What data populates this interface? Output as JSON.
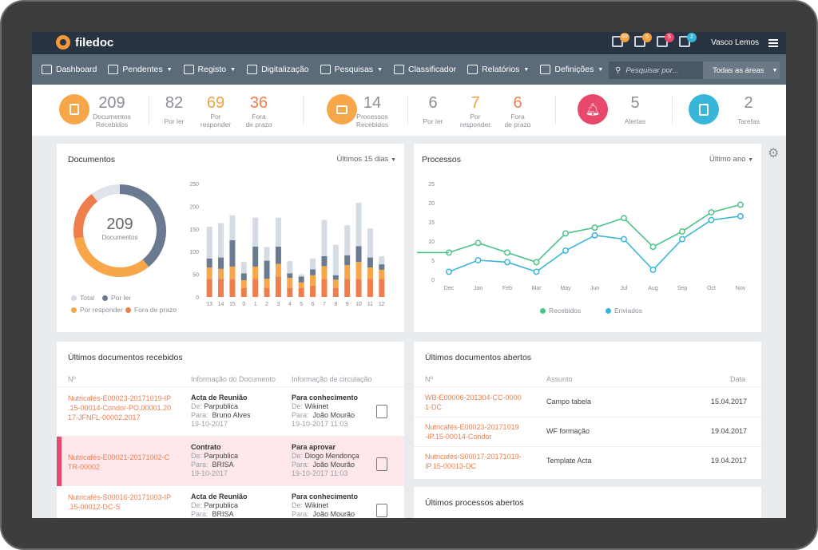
{
  "app": {
    "name": "filedoc",
    "user": "Vasco Lemos"
  },
  "topbar": {
    "badges": [
      {
        "value": "69",
        "color": "#f2a141"
      },
      {
        "value": "5",
        "color": "#f2a141"
      },
      {
        "value": "5",
        "color": "#e8496a"
      },
      {
        "value": "2",
        "color": "#37b6d9"
      }
    ]
  },
  "nav": {
    "items": [
      {
        "label": "Dashboard"
      },
      {
        "label": "Pendentes",
        "caret": true
      },
      {
        "label": "Registo",
        "caret": true
      },
      {
        "label": "Digitalização"
      },
      {
        "label": "Pesquisas",
        "caret": true
      },
      {
        "label": "Classificador"
      },
      {
        "label": "Relatórios",
        "caret": true
      },
      {
        "label": "Definições",
        "caret": true
      }
    ],
    "search_placeholder": "Pesquisar por...",
    "area": "Todas as áreas"
  },
  "stats": {
    "doc": {
      "value": "209",
      "label1": "Documentos",
      "label2": "Recebidos",
      "por_ler": "82",
      "por_ler_label": "Por ler",
      "por_responder": "69",
      "por_responder_l1": "Por",
      "por_responder_l2": "responder",
      "fora": "36",
      "fora_l1": "Fora",
      "fora_l2": "de prazo"
    },
    "proc": {
      "value": "14",
      "label1": "Processos",
      "label2": "Recebidos",
      "por_ler": "6",
      "por_ler_label": "Por ler",
      "por_responder": "7",
      "por_responder_l1": "Por",
      "por_responder_l2": "responder",
      "fora": "6",
      "fora_l1": "Fora",
      "fora_l2": "de prazo"
    },
    "alertas": {
      "value": "5",
      "label": "Alertas"
    },
    "tarefas": {
      "value": "2",
      "label": "Tarefas"
    },
    "colors": {
      "orange": "#f7a74a",
      "red": "#e8496a",
      "blue": "#37b6d9",
      "orange_text": "#f2a141",
      "red_text": "#f07e4d"
    }
  },
  "documentos": {
    "title": "Documentos",
    "range": "Últimos 15 dias",
    "total": "209",
    "total_label": "Documentos",
    "legend": [
      "Total",
      "Por ler",
      "Por responder",
      "Fora de prazo"
    ],
    "donut": {
      "Total": 209,
      "Por ler": 82,
      "Por responder": 69,
      "Fora de prazo": 36
    }
  },
  "processos": {
    "title": "Processos",
    "range": "Último ano",
    "legend": [
      "Recebidos",
      "Enviados"
    ]
  },
  "chart_data": [
    {
      "type": "bar",
      "stacked": true,
      "categories": [
        "13",
        "14",
        "15",
        "0",
        "1",
        "2",
        "3",
        "4",
        "5",
        "6",
        "7",
        "8",
        "9",
        "10",
        "11",
        "12"
      ],
      "ylim": [
        0,
        250
      ],
      "yticks": [
        0,
        50,
        100,
        150,
        200,
        250
      ],
      "series": [
        {
          "name": "Fora de prazo",
          "color": "#f07e4d",
          "values": [
            40,
            40,
            40,
            20,
            40,
            20,
            45,
            20,
            20,
            25,
            40,
            20,
            40,
            40,
            40,
            40
          ]
        },
        {
          "name": "Por responder",
          "color": "#f7a74a",
          "values": [
            25,
            22,
            27,
            17,
            27,
            20,
            28,
            22,
            12,
            23,
            28,
            18,
            30,
            37,
            25,
            20
          ]
        },
        {
          "name": "Por ler",
          "color": "#6a7a90",
          "values": [
            20,
            25,
            58,
            15,
            44,
            40,
            38,
            10,
            13,
            13,
            22,
            10,
            22,
            35,
            22,
            12
          ]
        },
        {
          "name": "Total",
          "color": "#d5dbe2",
          "values": [
            70,
            76,
            55,
            25,
            64,
            30,
            64,
            27,
            5,
            24,
            80,
            67,
            66,
            96,
            64,
            18
          ]
        }
      ]
    },
    {
      "type": "line",
      "categories": [
        "Dec",
        "Jan",
        "Feb",
        "Mar",
        "May",
        "Jun",
        "Jul",
        "Aug",
        "Sep",
        "Oct",
        "Nov"
      ],
      "ylim": [
        0,
        25
      ],
      "yticks": [
        0,
        5,
        10,
        15,
        20,
        25
      ],
      "series": [
        {
          "name": "Recebidos",
          "color": "#4cc38a",
          "values": [
            7,
            9.5,
            7,
            4.5,
            12,
            13.5,
            16,
            8.5,
            12.5,
            17.5,
            19.5
          ]
        },
        {
          "name": "Enviados",
          "color": "#37b6d9",
          "values": [
            2,
            5,
            4.5,
            2,
            7.5,
            11.5,
            10.5,
            2.5,
            10.5,
            15.5,
            16.5
          ]
        }
      ]
    }
  ],
  "recebidos": {
    "title": "Últimos documentos recebidos",
    "headers": [
      "Nº",
      "Informação do Documento",
      "Informação de circulação"
    ],
    "rows": [
      {
        "no": "Nutricafés-E00023-20171019-IP.15-00014-Condor-PO.00001.2017-JFNFL-00002.2017",
        "no_lines": [
          "Nutricafés-E00023-20171019-IP",
          ".15-00014-Condor-PO.00001.20",
          "17-JFNFL-00002.2017"
        ],
        "doc_title": "Acta de Reunião",
        "de_label": "De:",
        "de": "Parpublica",
        "para_label": "Para:",
        "para": "Bruno Alves",
        "date": "19-10-2017",
        "circ_title": "Para conhecimento",
        "circ_de": "Wikinet",
        "circ_para": "João Mourão",
        "circ_date": "19-10-2017 11:03"
      },
      {
        "no": "Nutricafés-E00021-20171002-CTR-00002",
        "no_lines": [
          "Nutricafés-E00021-20171002-C",
          "TR-00002"
        ],
        "doc_title": "Contrato",
        "de_label": "De:",
        "de": "Parpublica",
        "para_label": "Para:",
        "para": "BRISA",
        "date": "19-10-2017",
        "circ_title": "Para aprovar",
        "circ_de": "Diogo Mendonça",
        "circ_para": "João Mourão",
        "circ_date": "19-10-2017 11:03"
      },
      {
        "no": "Nutricafés-S00016-20171003-IP.15-00012-DC-S",
        "no_lines": [
          "Nutricafés-S00016-20171003-IP",
          ".15-00012-DC-S"
        ],
        "doc_title": "Acta de Reunião",
        "de_label": "De:",
        "de": "Parpublica",
        "para_label": "Para:",
        "para": "BRISA",
        "date": "",
        "circ_title": "Para conhecimento",
        "circ_de": "Wikinet",
        "circ_para": "João Mourão",
        "circ_date": ""
      }
    ]
  },
  "abertos": {
    "title": "Últimos documentos abertos",
    "headers": [
      "Nº",
      "Assunto",
      "Data"
    ],
    "rows": [
      {
        "no_lines": [
          "WB-E00006-201304-CC-0000",
          "1-DC"
        ],
        "assunto": "Campo tabela",
        "data": "15.04.2017"
      },
      {
        "no_lines": [
          "Nutricafés-E00023-20171019",
          "-IP.15-00014-Condor"
        ],
        "assunto": "WF formação",
        "data": "19.04.2017"
      },
      {
        "no_lines": [
          "Nutricafés-S00017-20171019-",
          "IP.15-00013-DC"
        ],
        "assunto": "Template Acta",
        "data": "19.04.2017"
      }
    ]
  },
  "processos_abertos": {
    "title": "Últimos processos abertos"
  }
}
